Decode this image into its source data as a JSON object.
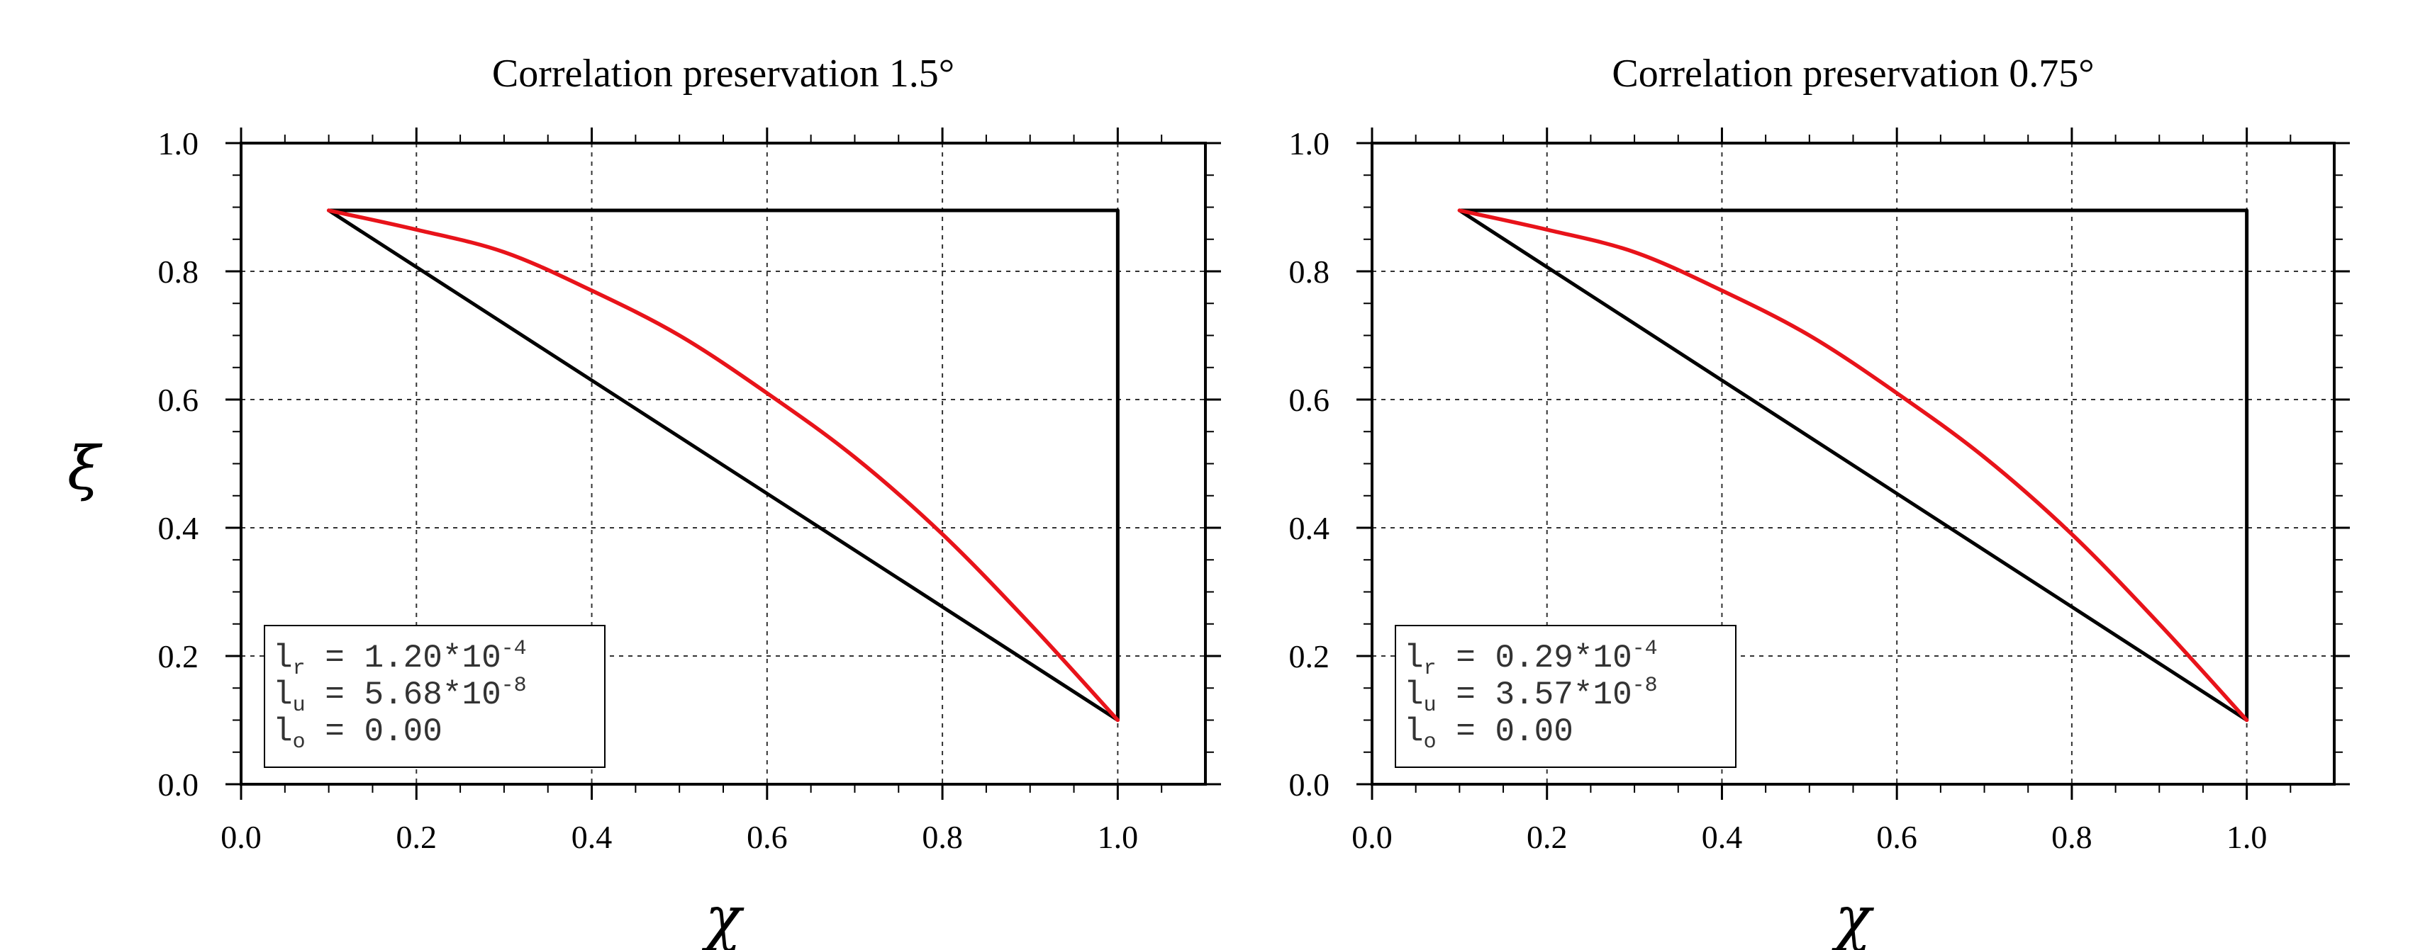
{
  "ylabel": "ξ",
  "chart_data": [
    {
      "type": "line",
      "title": "Correlation preservation 1.5°",
      "xlabel": "χ",
      "ylabel": "ξ",
      "xlim": [
        0.0,
        1.1
      ],
      "ylim": [
        0.0,
        1.0
      ],
      "x_ticks": [
        "0.0",
        "0.2",
        "0.4",
        "0.6",
        "0.8",
        "1.0"
      ],
      "y_ticks": [
        "0.0",
        "0.2",
        "0.4",
        "0.6",
        "0.8",
        "1.0"
      ],
      "grid": true,
      "series": [
        {
          "color": "#000000",
          "x": [
            0.1,
            1.0,
            1.0,
            0.1
          ],
          "y": [
            0.895,
            0.895,
            0.1,
            0.895
          ]
        },
        {
          "color": "#e8131a",
          "x": [
            0.1,
            0.2,
            0.3,
            0.4,
            0.5,
            0.6,
            0.7,
            0.8,
            0.9,
            1.0
          ],
          "y": [
            0.895,
            0.865,
            0.83,
            0.77,
            0.7,
            0.61,
            0.51,
            0.39,
            0.25,
            0.1
          ]
        }
      ],
      "legend": {
        "position": "bottom-left",
        "lines": [
          {
            "base": "l",
            "sub": "r",
            "text": " = 1.20*10",
            "sup": "-4"
          },
          {
            "base": "l",
            "sub": "u",
            "text": " = 5.68*10",
            "sup": "-8"
          },
          {
            "base": "l",
            "sub": "o",
            "text": " = 0.00",
            "sup": ""
          }
        ]
      }
    },
    {
      "type": "line",
      "title": "Correlation preservation 0.75°",
      "xlabel": "χ",
      "ylabel": "",
      "xlim": [
        0.0,
        1.1
      ],
      "ylim": [
        0.0,
        1.0
      ],
      "x_ticks": [
        "0.0",
        "0.2",
        "0.4",
        "0.6",
        "0.8",
        "1.0"
      ],
      "y_ticks": [
        "0.0",
        "0.2",
        "0.4",
        "0.6",
        "0.8",
        "1.0"
      ],
      "grid": true,
      "series": [
        {
          "color": "#000000",
          "x": [
            0.1,
            1.0,
            1.0,
            0.1
          ],
          "y": [
            0.895,
            0.895,
            0.1,
            0.895
          ]
        },
        {
          "color": "#e8131a",
          "x": [
            0.1,
            0.2,
            0.3,
            0.4,
            0.5,
            0.6,
            0.7,
            0.8,
            0.9,
            1.0
          ],
          "y": [
            0.895,
            0.865,
            0.83,
            0.77,
            0.7,
            0.61,
            0.51,
            0.39,
            0.25,
            0.1
          ]
        }
      ],
      "legend": {
        "position": "bottom-left",
        "lines": [
          {
            "base": "l",
            "sub": "r",
            "text": " = 0.29*10",
            "sup": "-4"
          },
          {
            "base": "l",
            "sub": "u",
            "text": " = 3.57*10",
            "sup": "-8"
          },
          {
            "base": "l",
            "sub": "o",
            "text": " = 0.00",
            "sup": ""
          }
        ]
      }
    }
  ]
}
